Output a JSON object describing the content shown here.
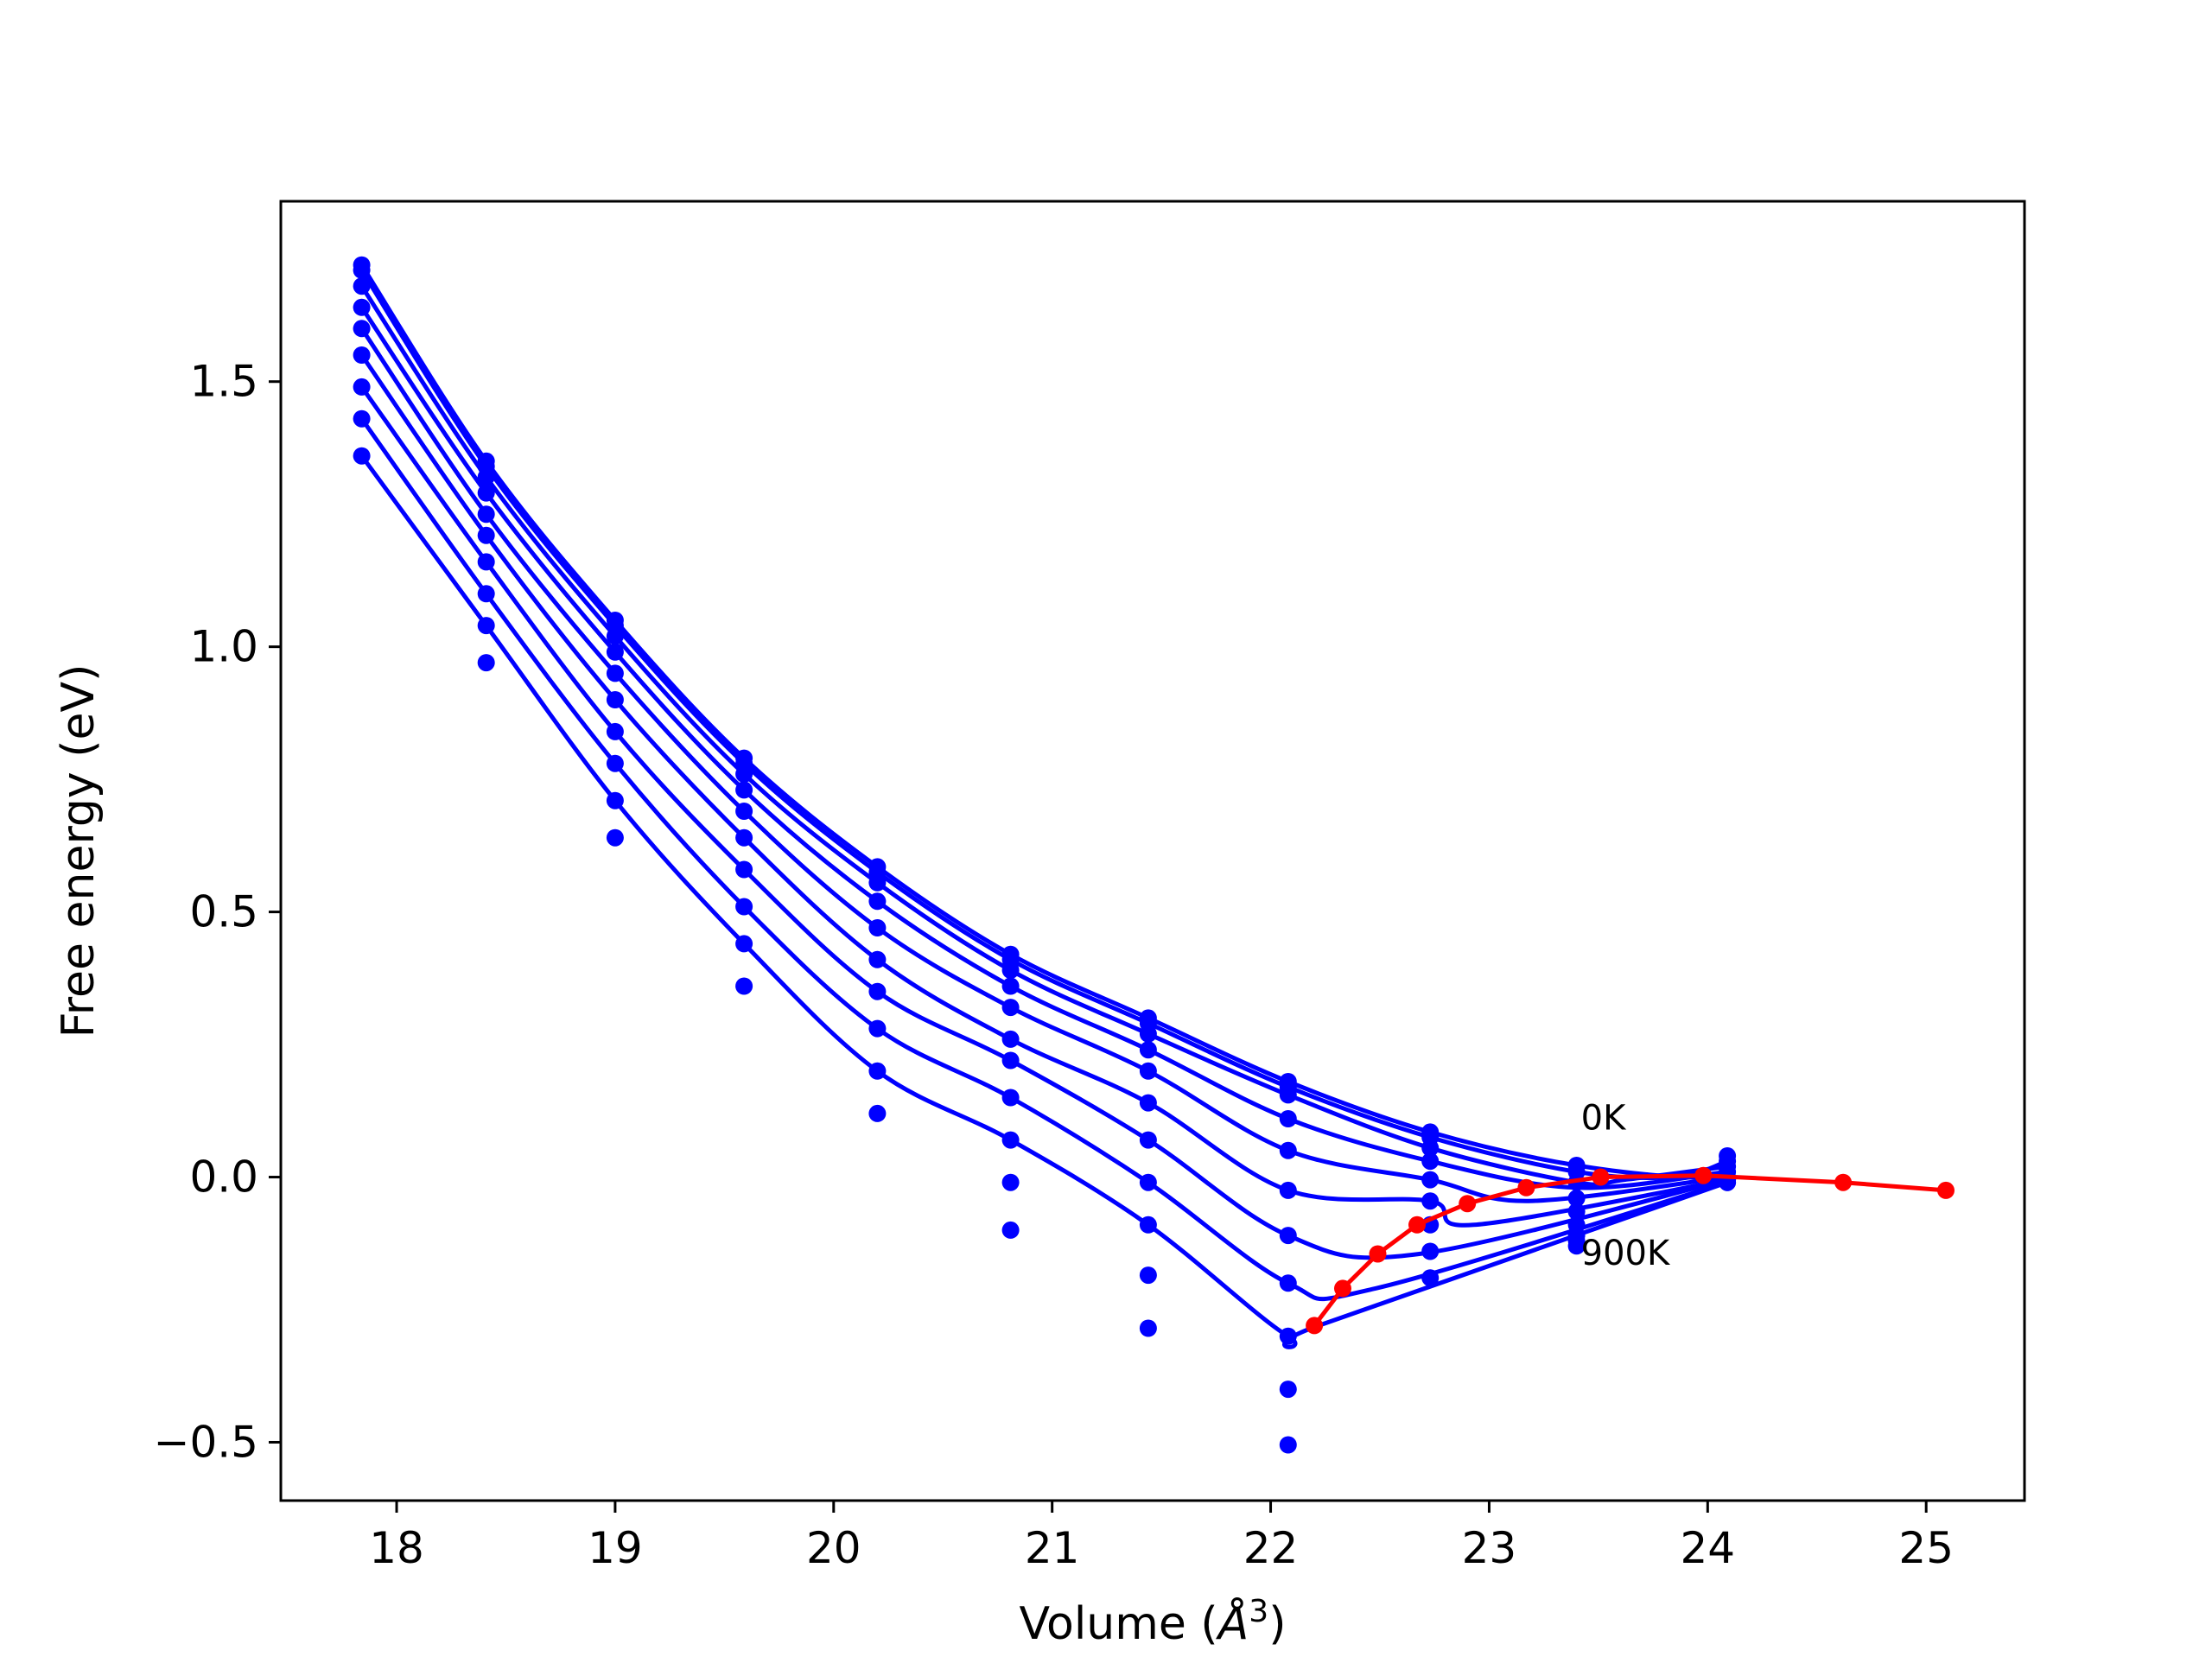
{
  "chart_data": {
    "type": "scatter",
    "title": "",
    "xlabel": "Volume (",
    "xlabel_symbol": "Å",
    "xlabel_exp": "3",
    "xlabel_close": ")",
    "ylabel": "Free energy (eV)",
    "xlim": [
      17.47,
      25.45
    ],
    "ylim": [
      -0.61,
      1.84
    ],
    "grid": false,
    "legend": "none",
    "x_ticks": [
      18,
      19,
      20,
      21,
      22,
      23,
      24,
      25
    ],
    "x_tick_labels": [
      "18",
      "19",
      "20",
      "21",
      "22",
      "23",
      "24",
      "25"
    ],
    "y_ticks": [
      -0.5,
      0.0,
      0.5,
      1.0,
      1.5
    ],
    "y_tick_labels": [
      "−0.5",
      "0.0",
      "0.5",
      "1.0",
      "1.5"
    ],
    "annotations": [
      {
        "text": "0K",
        "x": 23.42,
        "y": 0.09
      },
      {
        "text": "900K",
        "x": 23.42,
        "y": -0.165
      }
    ],
    "volumes": [
      17.84,
      18.41,
      19.0,
      19.59,
      20.2,
      20.81,
      21.44,
      22.08,
      22.73,
      23.4,
      24.09
    ],
    "series": [
      {
        "color": "#0000ff",
        "values": [
          1.72,
          1.35,
          1.05,
          0.79,
          0.585,
          0.42,
          0.3,
          0.18,
          0.085,
          0.022,
          0.04
        ],
        "min_v": 23.99,
        "min_f": 0.0
      },
      {
        "color": "#0000ff",
        "values": [
          1.71,
          1.34,
          1.04,
          0.78,
          0.575,
          0.41,
          0.29,
          0.17,
          0.075,
          0.01,
          0.03
        ],
        "min_v": 23.85,
        "min_f": 0.0
      },
      {
        "color": "#0000ff",
        "values": [
          1.68,
          1.32,
          1.02,
          0.76,
          0.555,
          0.39,
          0.27,
          0.155,
          0.055,
          -0.01,
          0.02
        ],
        "min_v": 23.62,
        "min_f": -0.005
      },
      {
        "color": "#0000ff",
        "values": [
          1.64,
          1.29,
          0.99,
          0.73,
          0.52,
          0.36,
          0.24,
          0.11,
          0.03,
          -0.04,
          0.01
        ],
        "min_v": 23.4,
        "min_f": -0.02
      },
      {
        "color": "#0000ff",
        "values": [
          1.6,
          1.25,
          0.95,
          0.69,
          0.47,
          0.32,
          0.2,
          0.05,
          -0.005,
          -0.065,
          0.0
        ],
        "min_v": 23.18,
        "min_f": -0.045
      },
      {
        "color": "#0000ff",
        "values": [
          1.55,
          1.21,
          0.9,
          0.64,
          0.41,
          0.26,
          0.14,
          -0.025,
          -0.045,
          -0.09,
          -0.005
        ],
        "min_v": 22.93,
        "min_f": -0.09
      },
      {
        "color": "#0000ff",
        "values": [
          1.49,
          1.16,
          0.84,
          0.58,
          0.35,
          0.22,
          0.07,
          -0.11,
          -0.09,
          -0.11,
          -0.005
        ],
        "min_v": 22.68,
        "min_f": -0.145
      },
      {
        "color": "#0000ff",
        "values": [
          1.43,
          1.1,
          0.78,
          0.51,
          0.28,
          0.15,
          -0.01,
          -0.2,
          -0.14,
          -0.12,
          -0.01
        ],
        "min_v": 22.48,
        "min_f": -0.21
      },
      {
        "color": "#0000ff",
        "values": [
          1.36,
          1.04,
          0.71,
          0.44,
          0.2,
          0.07,
          -0.09,
          -0.3,
          -0.19,
          -0.13,
          -0.01
        ],
        "min_v": 22.22,
        "min_f": -0.28
      },
      {
        "color": "#0000ff",
        "values": [
          null,
          0.97,
          0.64,
          0.36,
          0.12,
          -0.01,
          -0.185,
          -0.4,
          null,
          null,
          null
        ],
        "min_v": null,
        "min_f": null
      },
      {
        "color": "#0000ff",
        "values": [
          null,
          null,
          null,
          null,
          null,
          -0.1,
          -0.285,
          -0.505,
          null,
          null,
          null
        ],
        "min_v": null,
        "min_f": null
      }
    ],
    "minima_path": {
      "color": "#ff0000",
      "x": [
        22.2,
        22.33,
        22.49,
        22.67,
        22.9,
        23.17,
        23.51,
        23.98,
        24.62,
        25.09
      ],
      "y": [
        -0.28,
        -0.21,
        -0.145,
        -0.09,
        -0.05,
        -0.02,
        0.0,
        0.003,
        -0.01,
        -0.025
      ]
    }
  }
}
